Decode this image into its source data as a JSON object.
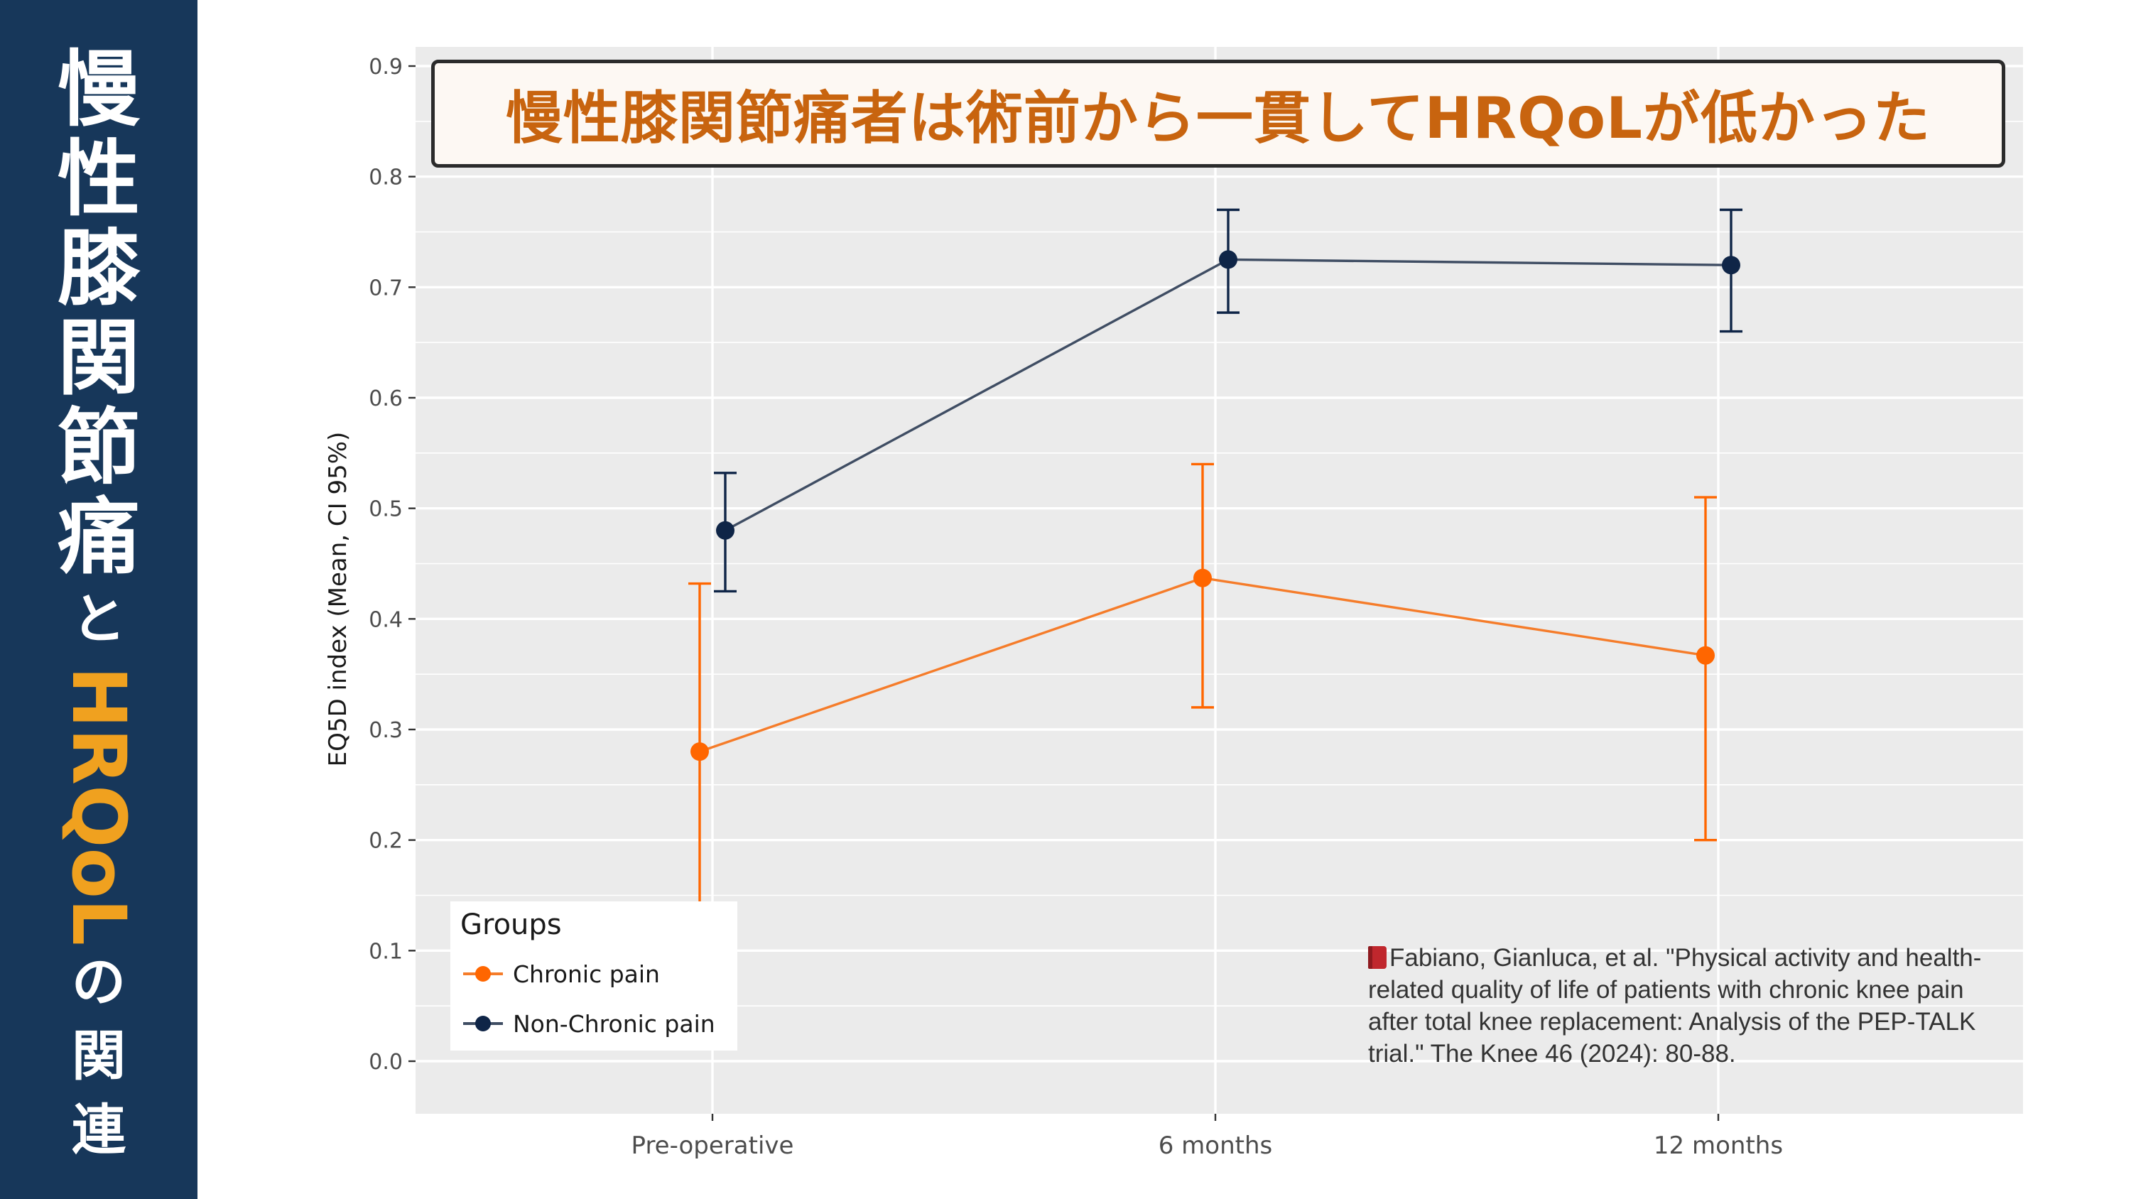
{
  "sidebar": {
    "title_top": [
      "慢",
      "性",
      "膝",
      "関",
      "節",
      "痛"
    ],
    "title_connector": "と",
    "title_accent": "HRQoL",
    "title_bottom_connector": "の",
    "title_bottom": [
      "関",
      "連"
    ],
    "background_color": "#17375a",
    "accent_color": "#f0a11f"
  },
  "headline": "慢性膝関節痛者は術前から一貫してHRQoLが低かった",
  "chart_data": {
    "type": "line",
    "xlabel": "",
    "ylabel": "EQ5D index (Mean, CI 95%)",
    "categories": [
      "Pre-operative",
      "6 months",
      "12 months"
    ],
    "ylim": [
      0.0,
      0.9
    ],
    "yticks": [
      "0.0",
      "0.1",
      "0.2",
      "0.3",
      "0.4",
      "0.5",
      "0.6",
      "0.7",
      "0.8",
      "0.9"
    ],
    "grid": true,
    "legend_position": "bottom-left",
    "legend_title": "Groups",
    "series": [
      {
        "name": "Chronic pain",
        "color": "#ff6600",
        "values": [
          0.28,
          0.437,
          0.367
        ],
        "ci_low": [
          0.14,
          0.32,
          0.2
        ],
        "ci_high": [
          0.432,
          0.54,
          0.51
        ]
      },
      {
        "name": "Non-Chronic pain",
        "color": "#0f2547",
        "values": [
          0.48,
          0.725,
          0.72
        ],
        "ci_low": [
          0.425,
          0.677,
          0.66
        ],
        "ci_high": [
          0.532,
          0.77,
          0.77
        ]
      }
    ]
  },
  "citation": "Fabiano, Gianluca, et al. \"Physical activity and health-related quality of life of patients with chronic knee pain after total knee replacement: Analysis of the PEP-TALK trial.\" The Knee 46 (2024): 80-88.",
  "citation_icon": "book-icon"
}
